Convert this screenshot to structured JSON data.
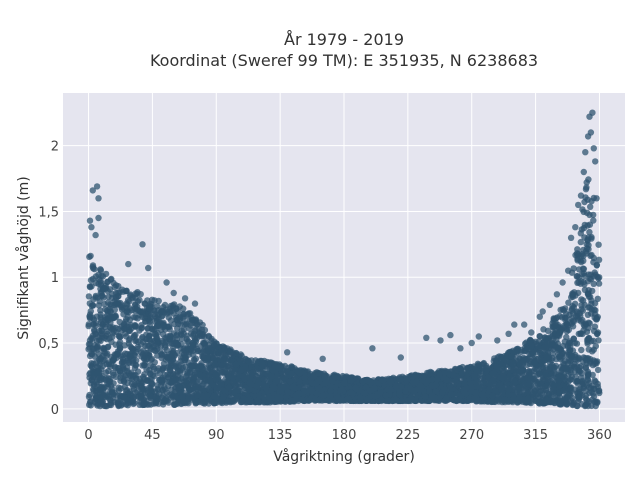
{
  "chart_data": {
    "type": "scatter",
    "title_line1": "År 1979 - 2019",
    "title_line2": "Koordinat (Sweref 99 TM): E 351935, N 6238683",
    "xlabel": "Vågriktning (grader)",
    "ylabel": "Signifikant våghöjd (m)",
    "xlim": [
      -18,
      378
    ],
    "ylim": [
      -0.1,
      2.4
    ],
    "x_ticks": [
      0,
      45,
      90,
      135,
      180,
      225,
      270,
      315,
      360
    ],
    "x_tick_labels": [
      "0",
      "45",
      "90",
      "135",
      "180",
      "225",
      "270",
      "315",
      "360"
    ],
    "y_ticks": [
      0,
      0.5,
      1,
      1.5,
      2
    ],
    "y_tick_labels": [
      "0",
      "0,5",
      "1",
      "1,5",
      "2"
    ],
    "grid": true,
    "marker_color": "#2f5470",
    "plot_background": "#e5e5ef",
    "envelope": {
      "x": [
        0,
        5,
        10,
        20,
        30,
        40,
        50,
        60,
        70,
        80,
        90,
        100,
        110,
        120,
        135,
        150,
        165,
        180,
        195,
        210,
        225,
        240,
        255,
        270,
        285,
        300,
        315,
        325,
        335,
        340,
        345,
        350,
        355,
        360
      ],
      "y_max": [
        1.2,
        1.15,
        1.05,
        0.95,
        0.92,
        0.88,
        0.82,
        0.8,
        0.75,
        0.65,
        0.5,
        0.45,
        0.4,
        0.37,
        0.35,
        0.3,
        0.27,
        0.25,
        0.22,
        0.23,
        0.25,
        0.28,
        0.3,
        0.33,
        0.38,
        0.45,
        0.55,
        0.65,
        0.8,
        1.0,
        1.3,
        1.7,
        1.8,
        1.2
      ],
      "y_min": [
        0.02,
        0.02,
        0.02,
        0.02,
        0.03,
        0.03,
        0.03,
        0.03,
        0.04,
        0.04,
        0.04,
        0.05,
        0.05,
        0.05,
        0.05,
        0.06,
        0.06,
        0.06,
        0.06,
        0.06,
        0.06,
        0.06,
        0.06,
        0.06,
        0.05,
        0.05,
        0.04,
        0.04,
        0.03,
        0.03,
        0.02,
        0.02,
        0.02,
        0.02
      ]
    },
    "outliers": [
      {
        "x": 3,
        "y": 1.66
      },
      {
        "x": 6,
        "y": 1.69
      },
      {
        "x": 7,
        "y": 1.6
      },
      {
        "x": 1,
        "y": 1.43
      },
      {
        "x": 7,
        "y": 1.45
      },
      {
        "x": 2,
        "y": 1.38
      },
      {
        "x": 5,
        "y": 1.32
      },
      {
        "x": 38,
        "y": 1.25
      },
      {
        "x": 42,
        "y": 1.07
      },
      {
        "x": 28,
        "y": 1.1
      },
      {
        "x": 55,
        "y": 0.96
      },
      {
        "x": 68,
        "y": 0.84
      },
      {
        "x": 75,
        "y": 0.8
      },
      {
        "x": 100,
        "y": 0.45
      },
      {
        "x": 140,
        "y": 0.43
      },
      {
        "x": 165,
        "y": 0.38
      },
      {
        "x": 200,
        "y": 0.46
      },
      {
        "x": 220,
        "y": 0.39
      },
      {
        "x": 238,
        "y": 0.54
      },
      {
        "x": 248,
        "y": 0.52
      },
      {
        "x": 255,
        "y": 0.56
      },
      {
        "x": 262,
        "y": 0.46
      },
      {
        "x": 270,
        "y": 0.5
      },
      {
        "x": 275,
        "y": 0.55
      },
      {
        "x": 288,
        "y": 0.52
      },
      {
        "x": 296,
        "y": 0.57
      },
      {
        "x": 300,
        "y": 0.64
      },
      {
        "x": 307,
        "y": 0.64
      },
      {
        "x": 312,
        "y": 0.58
      },
      {
        "x": 320,
        "y": 0.74
      },
      {
        "x": 325,
        "y": 0.79
      },
      {
        "x": 330,
        "y": 0.87
      },
      {
        "x": 338,
        "y": 1.05
      },
      {
        "x": 340,
        "y": 1.3
      },
      {
        "x": 343,
        "y": 1.38
      },
      {
        "x": 345,
        "y": 1.55
      },
      {
        "x": 349,
        "y": 1.8
      },
      {
        "x": 350,
        "y": 1.95
      },
      {
        "x": 352,
        "y": 2.07
      },
      {
        "x": 353,
        "y": 2.22
      },
      {
        "x": 355,
        "y": 2.25
      },
      {
        "x": 354,
        "y": 2.1
      },
      {
        "x": 356,
        "y": 1.98
      },
      {
        "x": 357,
        "y": 1.88
      },
      {
        "x": 358,
        "y": 1.6
      },
      {
        "x": 351,
        "y": 1.72
      },
      {
        "x": 347,
        "y": 1.62
      },
      {
        "x": 334,
        "y": 0.96
      },
      {
        "x": 318,
        "y": 0.7
      },
      {
        "x": 60,
        "y": 0.88
      }
    ]
  }
}
